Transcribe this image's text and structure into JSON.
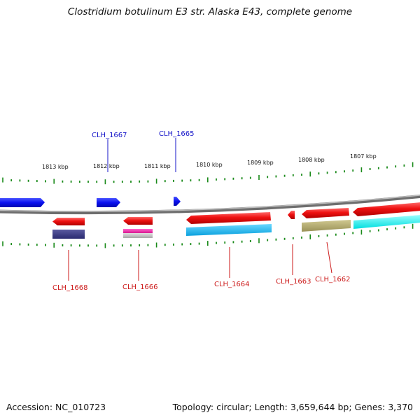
{
  "title": "Clostridium botulinum E3 str. Alaska E43, complete genome",
  "footer": {
    "accession": "Accession: NC_010723",
    "summary": "Topology: circular; Length: 3,659,644 bp; Genes: 3,370"
  },
  "scale_labels": [
    "1813 kbp",
    "1812 kbp",
    "1811 kbp",
    "1810 kbp",
    "1809 kbp",
    "1808 kbp",
    "1807 kbp"
  ],
  "gene_labels": {
    "top": [
      "CLH_1667",
      "CLH_1665"
    ],
    "bottom": [
      "CLH_1668",
      "CLH_1666",
      "CLH_1664",
      "CLH_1663",
      "CLH_1662"
    ]
  },
  "colors": {
    "forward_gene": "#0a10f0",
    "reverse_gene": "#ee1111",
    "backbone": "#888888",
    "tick": "#1a8a1a",
    "top_label": "#1515c8",
    "bottom_label": "#cc1a1a",
    "feature_navy": "#3a3a80",
    "feature_magenta": "#ee22aa",
    "feature_gray": "#c0c0c0",
    "feature_sky": "#1ab8ee",
    "feature_olive": "#b0a870",
    "feature_cyan": "#11eeee"
  }
}
